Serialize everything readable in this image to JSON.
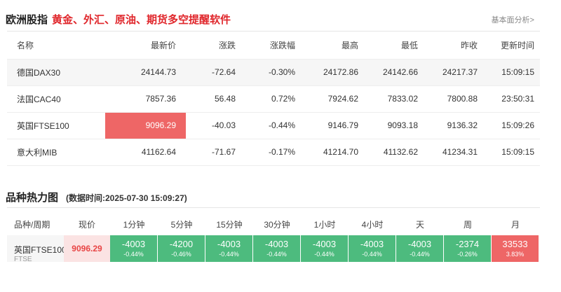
{
  "section1": {
    "title": "欧洲股指",
    "promo": "黄金、外汇、原油、期货多空提醒软件",
    "link": "基本面分析>",
    "headers": [
      "名称",
      "最新价",
      "涨跌",
      "涨跌幅",
      "最高",
      "最低",
      "昨收",
      "更新时间"
    ],
    "rows": [
      {
        "name": "德国DAX30",
        "last": "24144.73",
        "change": "-72.64",
        "pct": "-0.30%",
        "high": "24172.86",
        "low": "24142.66",
        "prev": "24217.37",
        "time": "15:09:15"
      },
      {
        "name": "法国CAC40",
        "last": "7857.36",
        "change": "56.48",
        "pct": "0.72%",
        "high": "7924.62",
        "low": "7833.02",
        "prev": "7800.88",
        "time": "23:50:31"
      },
      {
        "name": "英国FTSE100",
        "last": "9096.29",
        "change": "-40.03",
        "pct": "-0.44%",
        "high": "9146.79",
        "low": "9093.18",
        "prev": "9136.32",
        "time": "15:09:26"
      },
      {
        "name": "意大利MIB",
        "last": "41162.64",
        "change": "-71.67",
        "pct": "-0.17%",
        "high": "41214.70",
        "low": "41132.62",
        "prev": "41234.31",
        "time": "15:09:15"
      }
    ]
  },
  "section2": {
    "title": "品种热力图",
    "time": "(数据时间:2025-07-30 15:09:27)",
    "headers": [
      "品种/周期",
      "现价",
      "1分钟",
      "5分钟",
      "15分钟",
      "30分钟",
      "1小时",
      "4小时",
      "天",
      "周",
      "月"
    ],
    "row": {
      "name": "英国FTSE100",
      "code": "FTSE",
      "price": "9096.29",
      "cells": [
        {
          "value": "-4003",
          "pct": "-0.44%"
        },
        {
          "value": "-4200",
          "pct": "-0.46%"
        },
        {
          "value": "-4003",
          "pct": "-0.44%"
        },
        {
          "value": "-4003",
          "pct": "-0.44%"
        },
        {
          "value": "-4003",
          "pct": "-0.44%"
        },
        {
          "value": "-4003",
          "pct": "-0.44%"
        },
        {
          "value": "-4003",
          "pct": "-0.44%"
        },
        {
          "value": "-2374",
          "pct": "-0.26%"
        },
        {
          "value": "33533",
          "pct": "3.83%"
        }
      ]
    }
  },
  "colors": {
    "up": "#e84545",
    "down": "#3fa06a",
    "heat_green": "#4dbb7e",
    "heat_red": "#ee6666",
    "promo": "#e0262b"
  }
}
